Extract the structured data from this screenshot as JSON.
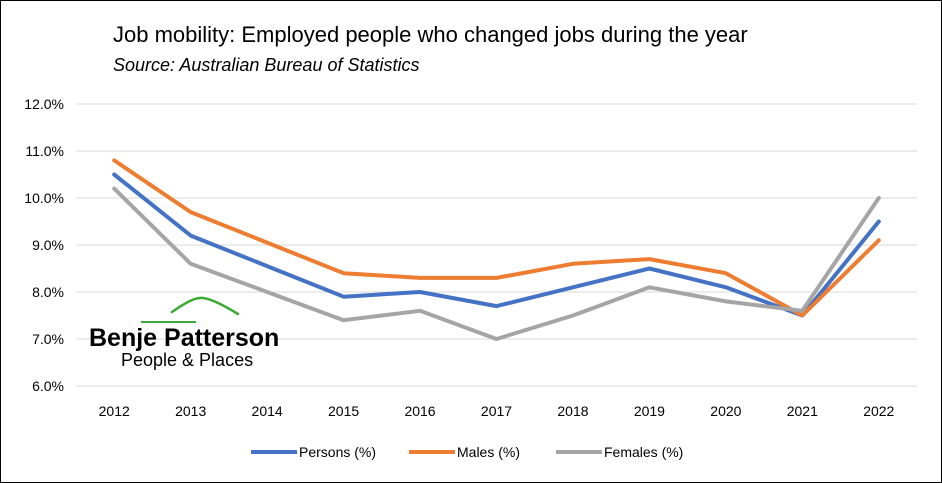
{
  "chart_data": {
    "type": "line",
    "title": "Job mobility: Employed people who changed jobs during the year",
    "subtitle": "Source: Australian Bureau of Statistics",
    "x": [
      "2012",
      "2013",
      "2014",
      "2015",
      "2016",
      "2017",
      "2018",
      "2019",
      "2020",
      "2021",
      "2022"
    ],
    "y_ticks": [
      "6.0%",
      "7.0%",
      "8.0%",
      "9.0%",
      "10.0%",
      "11.0%",
      "12.0%"
    ],
    "ylim": [
      6,
      12
    ],
    "grid": true,
    "legend_position": "bottom",
    "series": [
      {
        "name": "Persons (%)",
        "color": "#4472C4",
        "values": [
          10.5,
          9.2,
          8.55,
          7.9,
          8.0,
          7.7,
          8.1,
          8.5,
          8.1,
          7.5,
          9.5
        ]
      },
      {
        "name": "Males (%)",
        "color": "#ED7D31",
        "values": [
          10.8,
          9.7,
          9.05,
          8.4,
          8.3,
          8.3,
          8.6,
          8.7,
          8.4,
          7.5,
          9.1
        ]
      },
      {
        "name": "Females (%)",
        "color": "#A5A5A5",
        "values": [
          10.2,
          8.6,
          8.0,
          7.4,
          7.6,
          7.0,
          7.5,
          8.1,
          7.8,
          7.6,
          10.0
        ]
      }
    ]
  },
  "logo": {
    "name": "Benje Patterson",
    "tagline": "People & Places",
    "accent_color": "#3BA935"
  }
}
